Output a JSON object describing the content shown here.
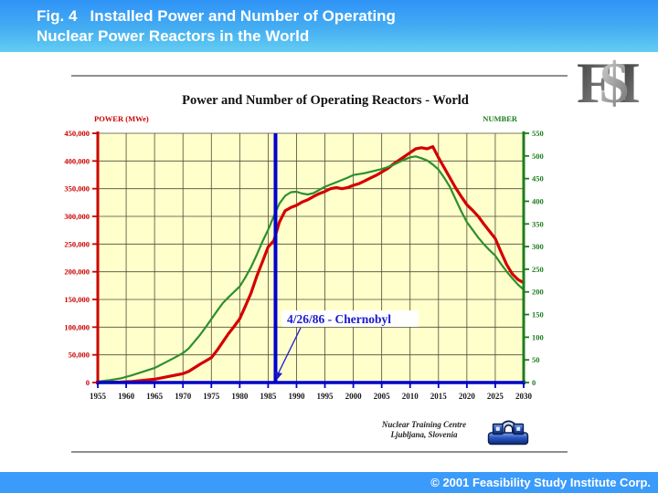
{
  "header": {
    "title_line1": "Fig. 4   Installed Power and Number of Operating",
    "title_line2": "Nuclear Power Reactors in the World"
  },
  "fsi_logo": {
    "letters": [
      "F",
      "$",
      "I"
    ]
  },
  "credit": {
    "line1": "Nuclear Training Centre",
    "line2": "Ljubljana, Slovenia"
  },
  "footer": {
    "copyright": "© 2001 Feasibility Study Institute Corp."
  },
  "colors": {
    "header_gradient_top": "#2f93f7",
    "header_gradient_bottom": "#63cdf2",
    "footer_blue": "#3b9bfb",
    "plot_background": "#ffffcc",
    "grid": "#4d4d33",
    "power_red": "#d40000",
    "number_green": "#2d8f2d",
    "event_blue": "#0000cc"
  },
  "chart_data": {
    "type": "line",
    "title": "Power and Number of Operating Reactors - World",
    "x_axis": {
      "range": [
        1955,
        2030
      ],
      "ticks": [
        1955,
        1960,
        1965,
        1970,
        1975,
        1980,
        1985,
        1990,
        1995,
        2000,
        2005,
        2010,
        2015,
        2020,
        2025,
        2030
      ]
    },
    "y_left": {
      "label": "POWER (MWe)",
      "range": [
        0,
        450000
      ],
      "ticks": [
        0,
        50000,
        100000,
        150000,
        200000,
        250000,
        300000,
        350000,
        400000,
        450000
      ],
      "color": "#cc0000"
    },
    "y_right": {
      "label": "NUMBER",
      "range": [
        0,
        550
      ],
      "ticks": [
        0,
        50,
        100,
        150,
        200,
        250,
        300,
        350,
        400,
        450,
        500,
        550
      ],
      "color": "#1e7d1e"
    },
    "grid": true,
    "legend": "none",
    "event_line": {
      "x": 1986.3,
      "label": "4/26/86 - Chernobyl",
      "color": "#0000cc"
    },
    "series": [
      {
        "name": "Installed power (MWe)",
        "axis": "left",
        "color": "#d40000",
        "width": 3.2,
        "points": [
          [
            1955,
            0
          ],
          [
            1957,
            400
          ],
          [
            1959,
            900
          ],
          [
            1961,
            2000
          ],
          [
            1963,
            4000
          ],
          [
            1965,
            6000
          ],
          [
            1967,
            10000
          ],
          [
            1969,
            14000
          ],
          [
            1970,
            16000
          ],
          [
            1971,
            20000
          ],
          [
            1973,
            33000
          ],
          [
            1975,
            45000
          ],
          [
            1976,
            58000
          ],
          [
            1977,
            73000
          ],
          [
            1978,
            88000
          ],
          [
            1979,
            101000
          ],
          [
            1980,
            115000
          ],
          [
            1981,
            138000
          ],
          [
            1982,
            162000
          ],
          [
            1983,
            192000
          ],
          [
            1984,
            218000
          ],
          [
            1985,
            245000
          ],
          [
            1986,
            256000
          ],
          [
            1987,
            290000
          ],
          [
            1988,
            310000
          ],
          [
            1989,
            316000
          ],
          [
            1990,
            320000
          ],
          [
            1991,
            326000
          ],
          [
            1992,
            330000
          ],
          [
            1993,
            336000
          ],
          [
            1994,
            341000
          ],
          [
            1995,
            345000
          ],
          [
            1996,
            350000
          ],
          [
            1997,
            352000
          ],
          [
            1998,
            350000
          ],
          [
            1999,
            352000
          ],
          [
            2000,
            356000
          ],
          [
            2001,
            359000
          ],
          [
            2002,
            364000
          ],
          [
            2003,
            369000
          ],
          [
            2004,
            374000
          ],
          [
            2005,
            380000
          ],
          [
            2006,
            386000
          ],
          [
            2007,
            394000
          ],
          [
            2008,
            401000
          ],
          [
            2009,
            408000
          ],
          [
            2010,
            415000
          ],
          [
            2011,
            422000
          ],
          [
            2012,
            424000
          ],
          [
            2013,
            422000
          ],
          [
            2014,
            426000
          ],
          [
            2015,
            406000
          ],
          [
            2016,
            388000
          ],
          [
            2017,
            370000
          ],
          [
            2018,
            352000
          ],
          [
            2019,
            336000
          ],
          [
            2020,
            321000
          ],
          [
            2021,
            311000
          ],
          [
            2022,
            300000
          ],
          [
            2023,
            286000
          ],
          [
            2024,
            273000
          ],
          [
            2025,
            260000
          ],
          [
            2026,
            236000
          ],
          [
            2027,
            213000
          ],
          [
            2028,
            196000
          ],
          [
            2029,
            186000
          ],
          [
            2030,
            180000
          ]
        ]
      },
      {
        "name": "Number of operating reactors",
        "axis": "right",
        "color": "#2d8f2d",
        "width": 2.2,
        "points": [
          [
            1955,
            2
          ],
          [
            1957,
            5
          ],
          [
            1959,
            9
          ],
          [
            1961,
            16
          ],
          [
            1963,
            24
          ],
          [
            1965,
            32
          ],
          [
            1967,
            45
          ],
          [
            1969,
            58
          ],
          [
            1970,
            65
          ],
          [
            1971,
            75
          ],
          [
            1972,
            90
          ],
          [
            1973,
            105
          ],
          [
            1974,
            122
          ],
          [
            1975,
            140
          ],
          [
            1976,
            158
          ],
          [
            1977,
            175
          ],
          [
            1978,
            188
          ],
          [
            1979,
            200
          ],
          [
            1980,
            212
          ],
          [
            1981,
            232
          ],
          [
            1982,
            255
          ],
          [
            1983,
            282
          ],
          [
            1984,
            311
          ],
          [
            1985,
            337
          ],
          [
            1986,
            367
          ],
          [
            1987,
            395
          ],
          [
            1988,
            412
          ],
          [
            1989,
            420
          ],
          [
            1990,
            421
          ],
          [
            1991,
            417
          ],
          [
            1992,
            415
          ],
          [
            1993,
            418
          ],
          [
            1994,
            425
          ],
          [
            1995,
            432
          ],
          [
            1996,
            437
          ],
          [
            1997,
            442
          ],
          [
            1998,
            447
          ],
          [
            1999,
            452
          ],
          [
            2000,
            458
          ],
          [
            2001,
            460
          ],
          [
            2002,
            462
          ],
          [
            2003,
            465
          ],
          [
            2004,
            468
          ],
          [
            2005,
            471
          ],
          [
            2006,
            475
          ],
          [
            2007,
            480
          ],
          [
            2008,
            486
          ],
          [
            2009,
            492
          ],
          [
            2010,
            497
          ],
          [
            2011,
            499
          ],
          [
            2012,
            495
          ],
          [
            2013,
            490
          ],
          [
            2014,
            481
          ],
          [
            2015,
            470
          ],
          [
            2016,
            452
          ],
          [
            2017,
            432
          ],
          [
            2018,
            405
          ],
          [
            2019,
            378
          ],
          [
            2020,
            354
          ],
          [
            2021,
            337
          ],
          [
            2022,
            320
          ],
          [
            2023,
            305
          ],
          [
            2024,
            292
          ],
          [
            2025,
            280
          ],
          [
            2026,
            262
          ],
          [
            2027,
            245
          ],
          [
            2028,
            230
          ],
          [
            2029,
            216
          ],
          [
            2030,
            205
          ]
        ]
      }
    ]
  }
}
